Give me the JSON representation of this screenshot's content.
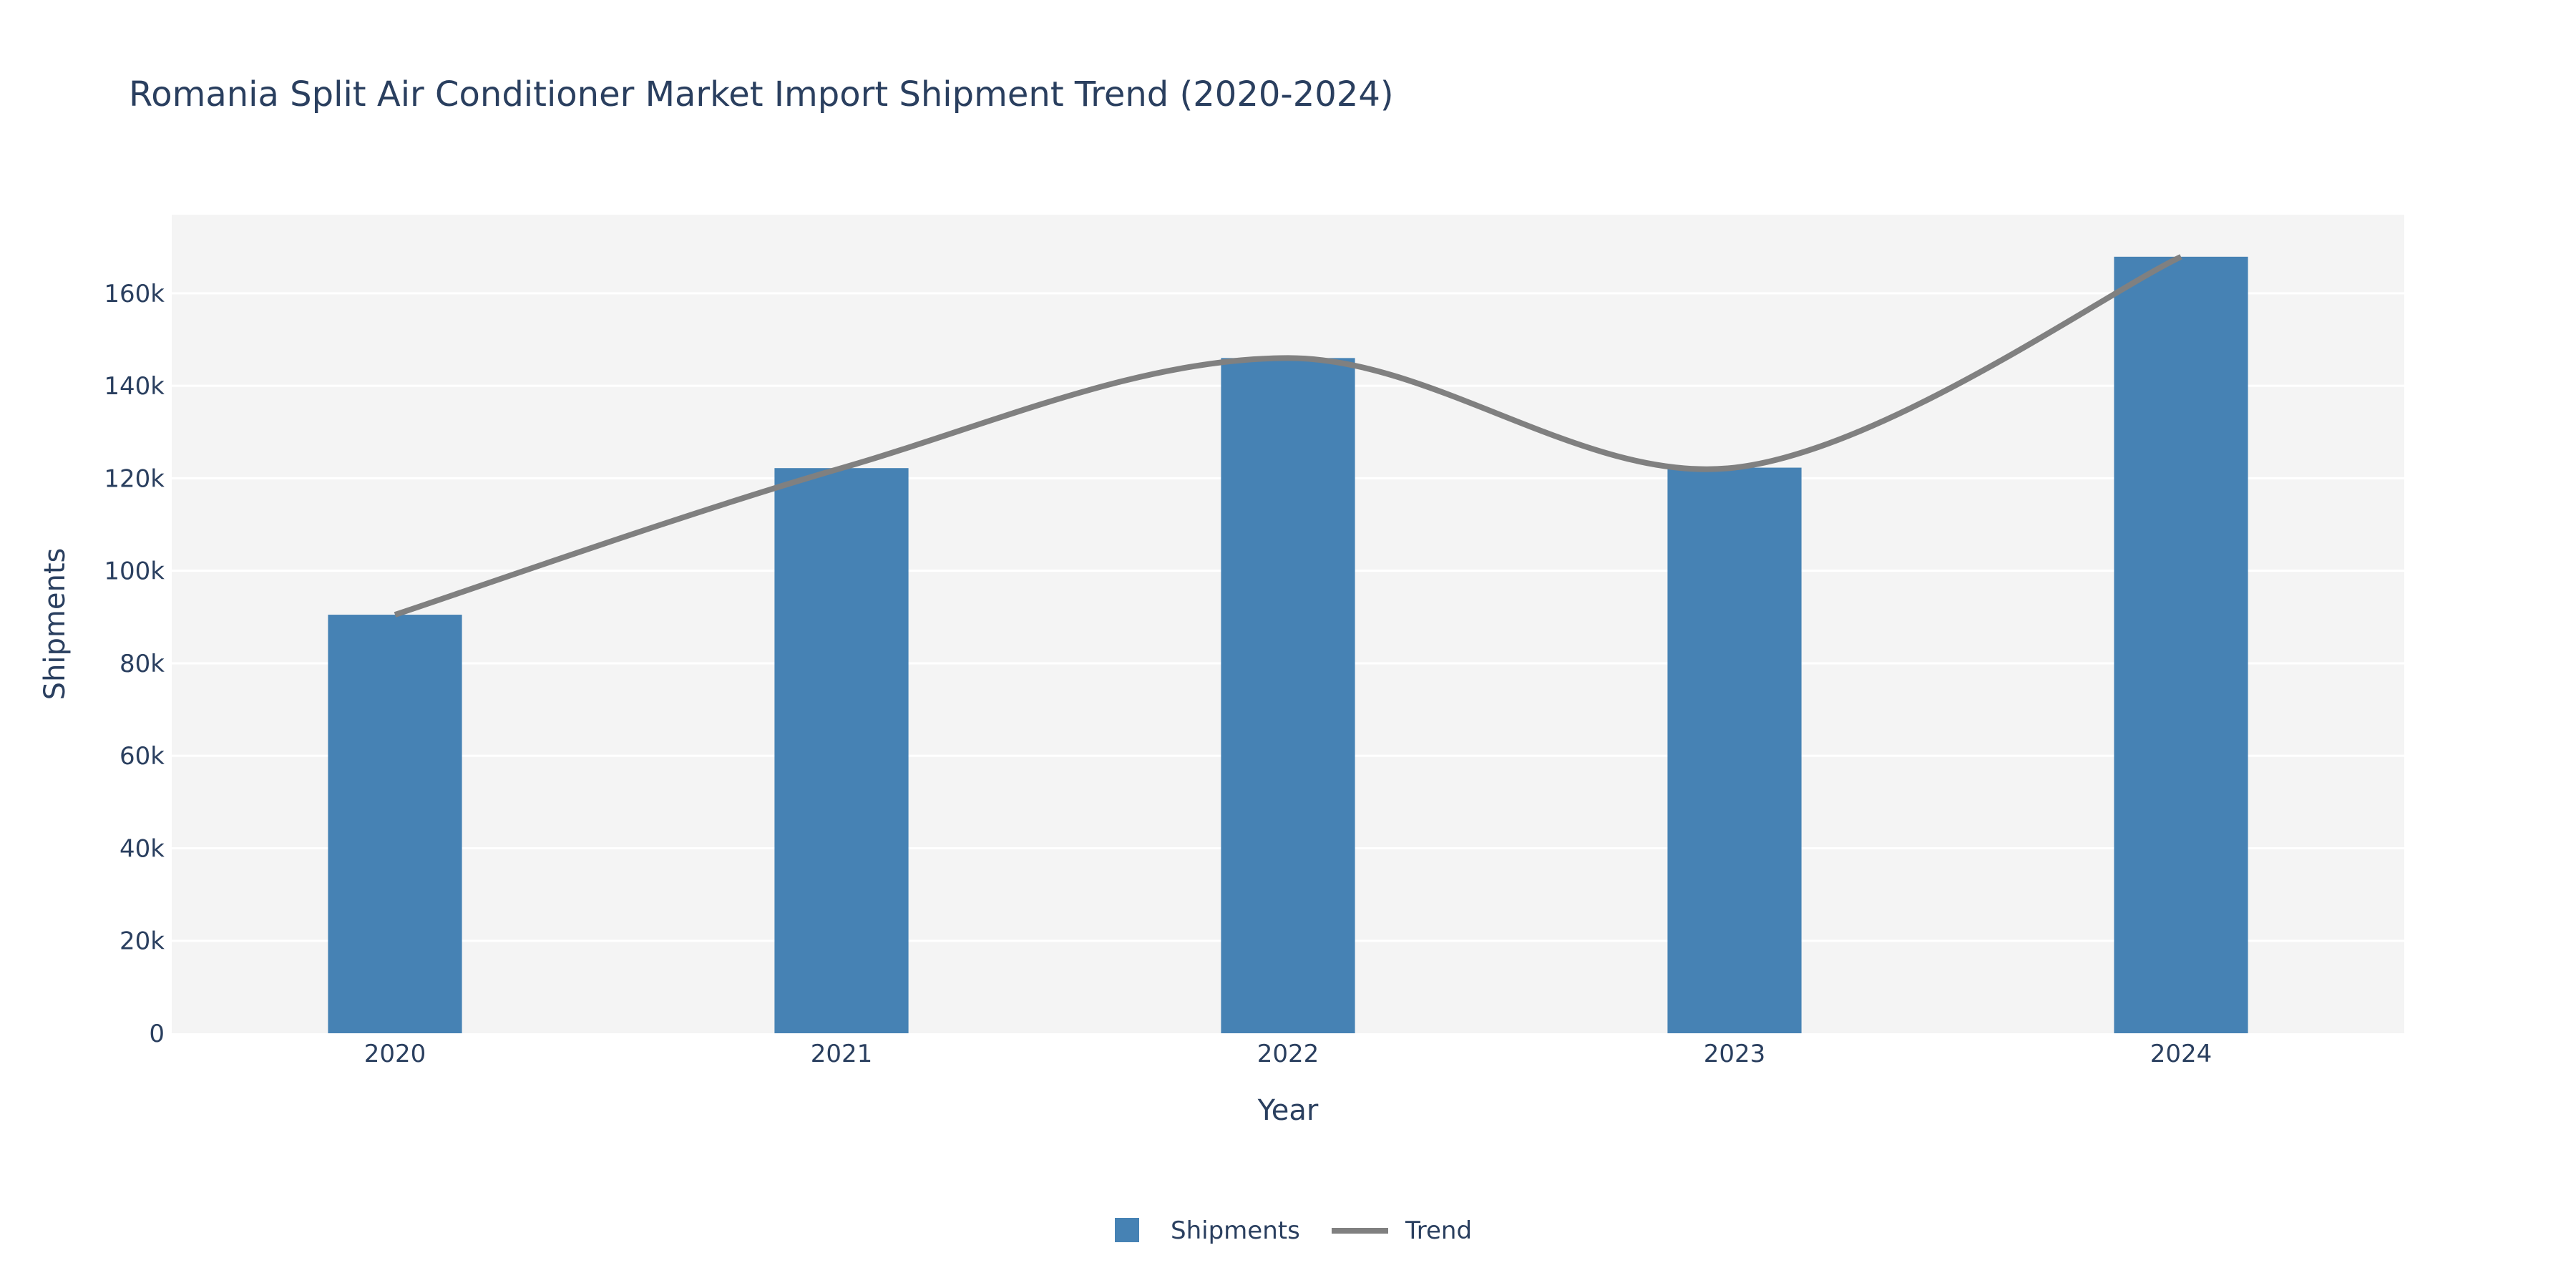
{
  "chart_data": {
    "type": "bar",
    "title": "Romania Split Air Conditioner Market Import Shipment Trend (2020-2024)",
    "xlabel": "Year",
    "ylabel": "Shipments",
    "categories": [
      "2020",
      "2021",
      "2022",
      "2023",
      "2024"
    ],
    "ylim": [
      0,
      177000
    ],
    "yticks": [
      0,
      20000,
      40000,
      60000,
      80000,
      100000,
      120000,
      140000,
      160000
    ],
    "ytick_labels": [
      "0",
      "20k",
      "40k",
      "60k",
      "80k",
      "100k",
      "120k",
      "140k",
      "160k"
    ],
    "grid": true,
    "legend_position": "bottom-center",
    "series": [
      {
        "name": "Shipments",
        "type": "bar",
        "color": "#4682b4",
        "values": [
          90500,
          122200,
          146000,
          122300,
          167900
        ]
      },
      {
        "name": "Trend",
        "type": "line",
        "shape": "spline",
        "color": "#808080",
        "values": [
          90500,
          122200,
          146000,
          122300,
          167900
        ]
      }
    ],
    "colors": {
      "plot_bg": "#f4f4f4",
      "grid": "#ffffff",
      "text": "#2a3f5f"
    }
  }
}
